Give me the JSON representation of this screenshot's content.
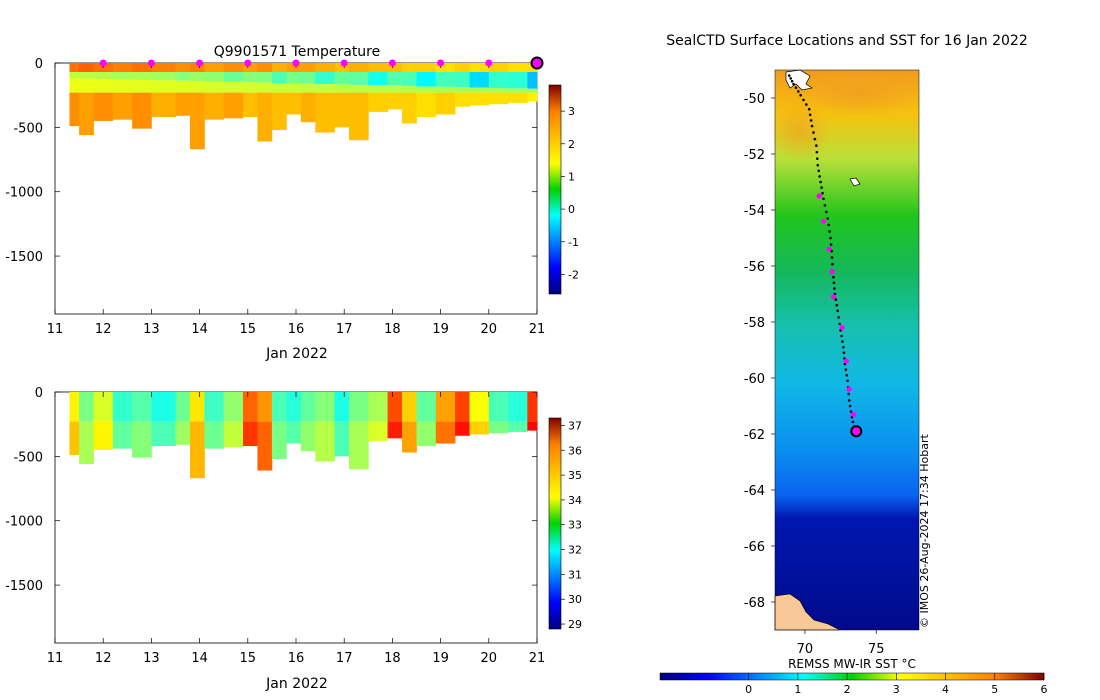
{
  "chart_data": [
    {
      "type": "heatmap",
      "title": "Q9901571  Temperature",
      "xlabel": "Jan 2022",
      "ylabel": "",
      "x_ticks": [
        "11",
        "12",
        "13",
        "14",
        "15",
        "16",
        "17",
        "18",
        "19",
        "20",
        "21"
      ],
      "x_range": [
        11,
        21
      ],
      "y_ticks": [
        "0",
        "-500",
        "-1000",
        "-1500"
      ],
      "y_tick_values": [
        0,
        -500,
        -1000,
        -1500
      ],
      "y_range": [
        -1950,
        0
      ],
      "colorbar_ticks": [
        "3",
        "2",
        "1",
        "0",
        "-1",
        "-2"
      ],
      "colorbar_tick_values": [
        3,
        2,
        1,
        0,
        -1,
        -2
      ],
      "colorbar_range": [
        -2.6,
        3.8
      ],
      "surface_markers_x": [
        12,
        13,
        14,
        15,
        16,
        17,
        18,
        19,
        20
      ],
      "current_marker_x": 21,
      "profiles": [
        {
          "day": 11.3,
          "depth": 490,
          "surface": 2.3,
          "deep": 2.1
        },
        {
          "day": 11.5,
          "depth": 560,
          "surface": 2.4,
          "deep": 2.0
        },
        {
          "day": 11.8,
          "depth": 450,
          "surface": 2.3,
          "deep": 2.1
        },
        {
          "day": 12.2,
          "depth": 440,
          "surface": 2.2,
          "deep": 2.0
        },
        {
          "day": 12.6,
          "depth": 510,
          "surface": 2.3,
          "deep": 2.1
        },
        {
          "day": 13.0,
          "depth": 420,
          "surface": 2.2,
          "deep": 1.9
        },
        {
          "day": 13.5,
          "depth": 410,
          "surface": 2.1,
          "deep": 2.0
        },
        {
          "day": 13.8,
          "depth": 670,
          "surface": 2.2,
          "deep": 2.0
        },
        {
          "day": 14.1,
          "depth": 440,
          "surface": 2.0,
          "deep": 1.9
        },
        {
          "day": 14.5,
          "depth": 430,
          "surface": 2.1,
          "deep": 2.0
        },
        {
          "day": 14.9,
          "depth": 420,
          "surface": 2.0,
          "deep": 1.8
        },
        {
          "day": 15.2,
          "depth": 610,
          "surface": 2.1,
          "deep": 1.9
        },
        {
          "day": 15.5,
          "depth": 520,
          "surface": 1.9,
          "deep": 1.8
        },
        {
          "day": 15.8,
          "depth": 400,
          "surface": 2.0,
          "deep": 1.8
        },
        {
          "day": 16.1,
          "depth": 460,
          "surface": 2.0,
          "deep": 1.9
        },
        {
          "day": 16.4,
          "depth": 540,
          "surface": 1.9,
          "deep": 1.8
        },
        {
          "day": 16.8,
          "depth": 500,
          "surface": 1.8,
          "deep": 1.8
        },
        {
          "day": 17.1,
          "depth": 600,
          "surface": 1.9,
          "deep": 1.8
        },
        {
          "day": 17.5,
          "depth": 380,
          "surface": 1.8,
          "deep": 1.7
        },
        {
          "day": 17.9,
          "depth": 360,
          "surface": 1.8,
          "deep": 1.7
        },
        {
          "day": 18.2,
          "depth": 470,
          "surface": 1.7,
          "deep": 1.7
        },
        {
          "day": 18.5,
          "depth": 420,
          "surface": 1.7,
          "deep": 1.6
        },
        {
          "day": 18.9,
          "depth": 400,
          "surface": 1.6,
          "deep": 1.7
        },
        {
          "day": 19.3,
          "depth": 340,
          "surface": 1.7,
          "deep": 1.6
        },
        {
          "day": 19.6,
          "depth": 330,
          "surface": 1.6,
          "deep": 1.6
        },
        {
          "day": 20.0,
          "depth": 320,
          "surface": 1.7,
          "deep": 1.6
        },
        {
          "day": 20.4,
          "depth": 310,
          "surface": 1.6,
          "deep": 1.6
        },
        {
          "day": 20.8,
          "depth": 300,
          "surface": 1.6,
          "deep": 1.5
        }
      ]
    },
    {
      "type": "heatmap",
      "title": "",
      "xlabel": "Jan 2022",
      "ylabel": "",
      "x_ticks": [
        "11",
        "12",
        "13",
        "14",
        "15",
        "16",
        "17",
        "18",
        "19",
        "20",
        "21"
      ],
      "x_range": [
        11,
        21
      ],
      "y_ticks": [
        "0",
        "-500",
        "-1000",
        "-1500"
      ],
      "y_tick_values": [
        0,
        -500,
        -1000,
        -1500
      ],
      "y_range": [
        -1950,
        0
      ],
      "colorbar_ticks": [
        "37",
        "36",
        "35",
        "34",
        "33",
        "32",
        "31",
        "30",
        "29"
      ],
      "colorbar_tick_values": [
        37,
        36,
        35,
        34,
        33,
        32,
        31,
        30,
        29
      ],
      "colorbar_range": [
        28.8,
        37.3
      ],
      "profiles": [
        {
          "day": 11.3,
          "depth": 490,
          "value": 34.6
        },
        {
          "day": 11.5,
          "depth": 560,
          "value": 33.4
        },
        {
          "day": 11.8,
          "depth": 450,
          "value": 34.2
        },
        {
          "day": 12.2,
          "depth": 440,
          "value": 32.8
        },
        {
          "day": 12.6,
          "depth": 510,
          "value": 33.1
        },
        {
          "day": 13.0,
          "depth": 420,
          "value": 32.6
        },
        {
          "day": 13.5,
          "depth": 410,
          "value": 33.3
        },
        {
          "day": 13.8,
          "depth": 670,
          "value": 34.7
        },
        {
          "day": 14.1,
          "depth": 440,
          "value": 32.9
        },
        {
          "day": 14.5,
          "depth": 430,
          "value": 33.6
        },
        {
          "day": 14.9,
          "depth": 420,
          "value": 35.8
        },
        {
          "day": 15.2,
          "depth": 610,
          "value": 35.4
        },
        {
          "day": 15.5,
          "depth": 520,
          "value": 33.0
        },
        {
          "day": 15.8,
          "depth": 400,
          "value": 32.7
        },
        {
          "day": 16.1,
          "depth": 460,
          "value": 33.2
        },
        {
          "day": 16.4,
          "depth": 540,
          "value": 33.5
        },
        {
          "day": 16.8,
          "depth": 500,
          "value": 32.6
        },
        {
          "day": 17.1,
          "depth": 600,
          "value": 33.4
        },
        {
          "day": 17.5,
          "depth": 380,
          "value": 33.8
        },
        {
          "day": 17.9,
          "depth": 360,
          "value": 36.0
        },
        {
          "day": 18.2,
          "depth": 470,
          "value": 34.9
        },
        {
          "day": 18.5,
          "depth": 420,
          "value": 33.2
        },
        {
          "day": 18.9,
          "depth": 400,
          "value": 35.3
        },
        {
          "day": 19.3,
          "depth": 340,
          "value": 36.1
        },
        {
          "day": 19.6,
          "depth": 330,
          "value": 34.5
        },
        {
          "day": 20.0,
          "depth": 320,
          "value": 33.0
        },
        {
          "day": 20.4,
          "depth": 310,
          "value": 32.7
        },
        {
          "day": 20.8,
          "depth": 300,
          "value": 36.2
        }
      ]
    },
    {
      "type": "heatmap",
      "title": "SealCTD Surface Locations and SST for 16 Jan 2022",
      "xlabel": "",
      "ylabel": "",
      "x_ticks": [
        "70",
        "75"
      ],
      "x_tick_values": [
        70,
        75
      ],
      "lon_range": [
        67.9,
        78.0
      ],
      "y_ticks": [
        "-50",
        "-52",
        "-54",
        "-56",
        "-58",
        "-60",
        "-62",
        "-64",
        "-66",
        "-68"
      ],
      "y_tick_values": [
        -50,
        -52,
        -54,
        -56,
        -58,
        -60,
        -62,
        -64,
        -66,
        -68
      ],
      "lat_range": [
        -69.0,
        -49.0
      ],
      "colorbar_label": "REMSS MW-IR SST °C",
      "colorbar_ticks": [
        "0",
        "1",
        "2",
        "3",
        "4",
        "5",
        "6"
      ],
      "colorbar_tick_values": [
        0,
        1,
        2,
        3,
        4,
        5,
        6
      ],
      "colorbar_range": [
        -1.8,
        6.0
      ],
      "credit": "© IMOS 26-Aug-2024 17:34 Hobart",
      "track": [
        [
          68.9,
          -49.2
        ],
        [
          69.2,
          -49.5
        ],
        [
          69.7,
          -49.9
        ],
        [
          70.3,
          -50.4
        ],
        [
          70.5,
          -51.0
        ],
        [
          70.8,
          -51.7
        ],
        [
          70.9,
          -52.4
        ],
        [
          71.1,
          -53.0
        ],
        [
          71.3,
          -53.6
        ],
        [
          71.6,
          -54.3
        ],
        [
          71.8,
          -55.0
        ],
        [
          71.9,
          -55.7
        ],
        [
          72.0,
          -56.4
        ],
        [
          72.1,
          -57.0
        ],
        [
          72.3,
          -57.6
        ],
        [
          72.5,
          -58.3
        ],
        [
          72.7,
          -58.9
        ],
        [
          72.8,
          -59.5
        ],
        [
          73.0,
          -60.1
        ],
        [
          73.1,
          -60.8
        ],
        [
          73.3,
          -61.4
        ],
        [
          73.5,
          -61.9
        ]
      ],
      "daily_positions": [
        [
          71.0,
          -53.5
        ],
        [
          71.3,
          -54.4
        ],
        [
          71.7,
          -55.4
        ],
        [
          71.9,
          -56.2
        ],
        [
          72.0,
          -57.1
        ],
        [
          72.6,
          -58.2
        ],
        [
          72.9,
          -59.4
        ],
        [
          73.1,
          -60.4
        ],
        [
          73.4,
          -61.3
        ]
      ],
      "current_position": [
        73.6,
        -61.9
      ]
    }
  ]
}
